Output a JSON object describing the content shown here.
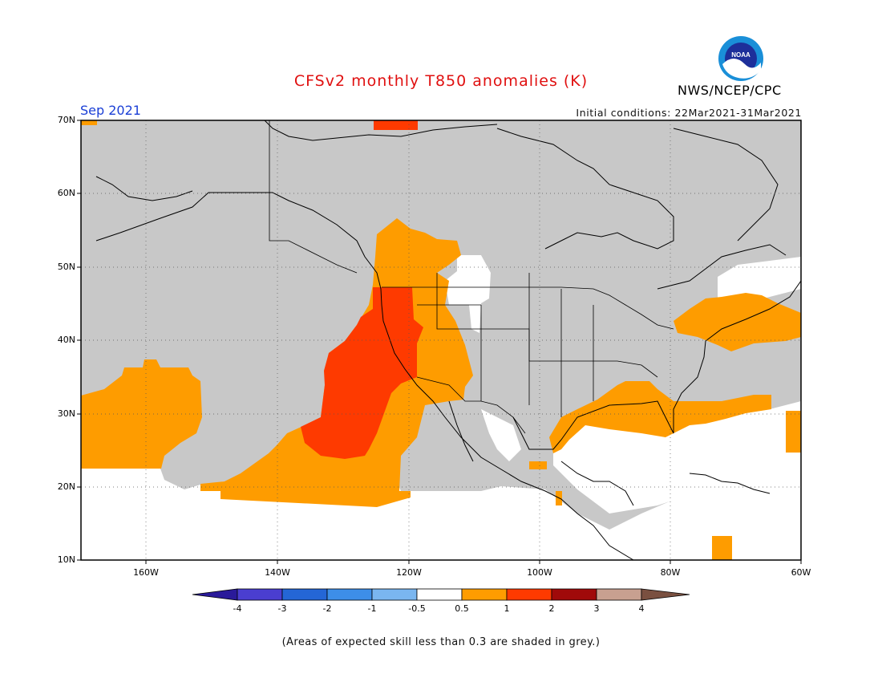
{
  "map": {
    "title": "CFSv2 monthly T850 anomalies (K)",
    "month": "Sep 2021",
    "initial_conditions": "Initial conditions: 22Mar2021-31Mar2021",
    "agency": "NWS/NCEP/CPC",
    "logo_text": "NOAA",
    "lat_labels": [
      "70N",
      "60N",
      "50N",
      "40N",
      "30N",
      "20N",
      "10N"
    ],
    "lon_labels": [
      "160W",
      "140W",
      "120W",
      "100W",
      "80W",
      "60W"
    ],
    "note": "(Areas of expected skill less than 0.3 are shaded in grey.)"
  },
  "colorbar": {
    "labels": [
      "-4",
      "-3",
      "-2",
      "-1",
      "-0.5",
      "0.5",
      "1",
      "2",
      "3",
      "4"
    ],
    "colors": [
      "#2a1a9a",
      "#4a3ed0",
      "#2466d6",
      "#3d8ee8",
      "#7ab6f0",
      "#ffffff",
      "#fe9c00",
      "#fe3a00",
      "#a00a0a",
      "#c8a090",
      "#7a5040"
    ]
  },
  "legend_colors": {
    "grey_low_skill": "#c8c8c8",
    "anom_0p5_1": "#fe9c00",
    "anom_1_2": "#fe3a00"
  }
}
